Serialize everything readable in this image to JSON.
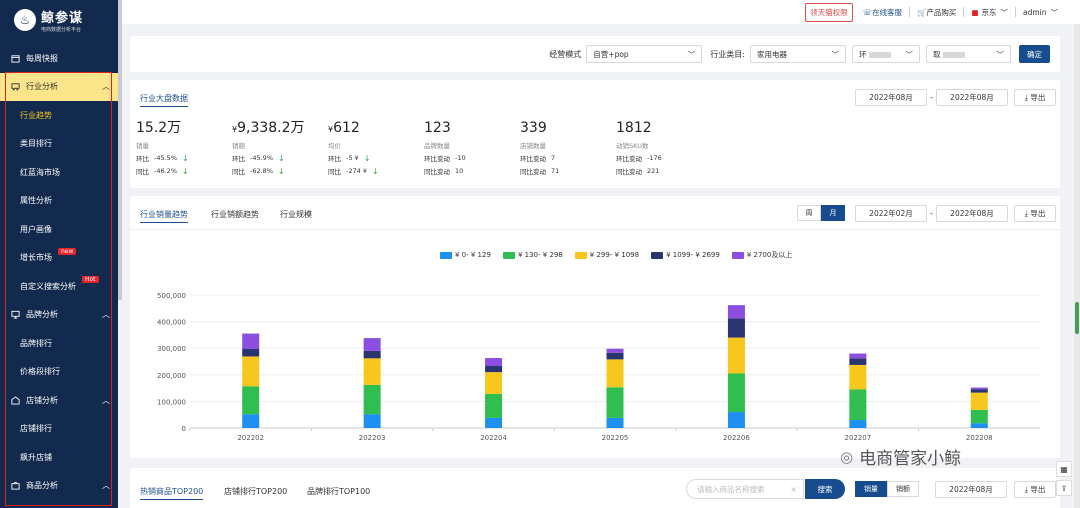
{
  "brand": {
    "title": "鲸参谋",
    "subtitle": "电商数据分析平台"
  },
  "topbar": {
    "feedback": "领天猫权限",
    "service": "在线客服",
    "purchase": "产品购买",
    "platform": "京东",
    "user": "admin"
  },
  "sidebar": {
    "items": [
      {
        "label": "每周快报",
        "icon": "calendar-icon"
      },
      {
        "label": "行业分析",
        "icon": "cart-icon"
      },
      {
        "label": "行业趋势"
      },
      {
        "label": "类目排行"
      },
      {
        "label": "红蓝海市场"
      },
      {
        "label": "属性分析"
      },
      {
        "label": "用户画像"
      },
      {
        "label": "增长市场",
        "badge": "new"
      },
      {
        "label": "自定义搜索分析",
        "badge": "Hot"
      },
      {
        "label": "品牌分析",
        "icon": "monitor-icon"
      },
      {
        "label": "品牌排行"
      },
      {
        "label": "价格段排行"
      },
      {
        "label": "店铺分析",
        "icon": "shop-icon"
      },
      {
        "label": "店铺排行"
      },
      {
        "label": "飙升店铺"
      },
      {
        "label": "商品分析",
        "icon": "bag-icon"
      }
    ]
  },
  "filter": {
    "mode_label": "经营模式",
    "mode_value": "自营+pop",
    "category_label": "行业类目:",
    "category_value": "家用电器",
    "sub1": "环",
    "sub2": "取",
    "confirm": "确定"
  },
  "overview": {
    "tab": "行业大盘数据",
    "date_start": "2022年08月",
    "date_sep": "-",
    "date_end": "2022年08月",
    "export": "导出",
    "kpis": [
      {
        "value": "15.2万",
        "currency": "",
        "label": "销量",
        "r1k": "环比",
        "r1v": "-45.5%",
        "r2k": "同比",
        "r2v": "-46.2%",
        "arrows": true
      },
      {
        "value": "9,338.2万",
        "currency": "¥",
        "label": "销额",
        "r1k": "环比",
        "r1v": "-45.9%",
        "r2k": "同比",
        "r2v": "-62.8%",
        "arrows": true
      },
      {
        "value": "612",
        "currency": "¥",
        "label": "均价",
        "r1k": "环比",
        "r1v": "-5 ¥",
        "r2k": "同比",
        "r2v": "-274 ¥",
        "arrows": true
      },
      {
        "value": "123",
        "currency": "",
        "label": "品牌数量",
        "r1k": "环比变动",
        "r1v": "-10",
        "r2k": "同比变动",
        "r2v": "10",
        "arrows": false
      },
      {
        "value": "339",
        "currency": "",
        "label": "店铺数量",
        "r1k": "环比变动",
        "r1v": "7",
        "r2k": "同比变动",
        "r2v": "71",
        "arrows": false
      },
      {
        "value": "1812",
        "currency": "",
        "label": "动销SKU数",
        "r1k": "环比变动",
        "r1v": "-176",
        "r2k": "同比变动",
        "r2v": "221",
        "arrows": false
      }
    ]
  },
  "trend": {
    "tabs": [
      "行业销量趋势",
      "行业销额趋势",
      "行业规模"
    ],
    "week": "周",
    "month": "月",
    "date_start": "2022年02月",
    "date_sep": "-",
    "date_end": "2022年08月",
    "export": "导出"
  },
  "chart_data": {
    "type": "bar",
    "stacked": true,
    "categories": [
      "202202",
      "202203",
      "202204",
      "202205",
      "202206",
      "202207",
      "202208"
    ],
    "series": [
      {
        "name": "¥ 0- ¥ 129",
        "color": "#1e90f2",
        "values": [
          52000,
          52000,
          38000,
          38000,
          60000,
          30000,
          18000
        ]
      },
      {
        "name": "¥ 130- ¥ 298",
        "color": "#2fbe4f",
        "values": [
          105000,
          110000,
          90000,
          115000,
          145000,
          115000,
          50000
        ]
      },
      {
        "name": "¥ 299- ¥ 1098",
        "color": "#f8c71e",
        "values": [
          112000,
          100000,
          82000,
          105000,
          135000,
          92000,
          65000
        ]
      },
      {
        "name": "¥ 1099- ¥ 2699",
        "color": "#2a3570",
        "values": [
          28000,
          28000,
          23000,
          25000,
          72000,
          25000,
          13000
        ]
      },
      {
        "name": "¥ 2700及以上",
        "color": "#8b4fe0",
        "values": [
          58000,
          48000,
          30000,
          15000,
          50000,
          18000,
          6000
        ]
      }
    ],
    "yticks": [
      "0",
      "100,000",
      "200,000",
      "300,000",
      "400,000",
      "500,000"
    ],
    "ylim": [
      0,
      500000
    ],
    "grid": true,
    "legend": "top-center"
  },
  "bottom": {
    "tabs": [
      "热销商品TOP200",
      "店铺排行TOP200",
      "品牌排行TOP100"
    ],
    "search_placeholder": "请输入商品名称搜索",
    "search_btn": "搜索",
    "seg1": "销量",
    "seg2": "销额",
    "date": "2022年08月",
    "export": "导出"
  },
  "watermark": "电商管家小鲸"
}
